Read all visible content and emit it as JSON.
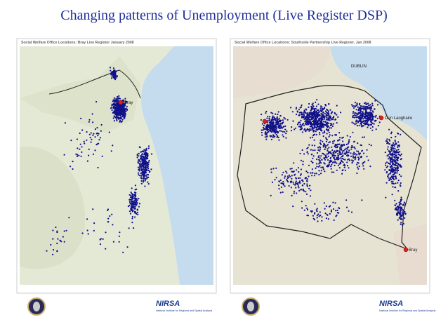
{
  "header": {
    "title": "Changing patterns of Unemployment (Live Register DSP)"
  },
  "maps": [
    {
      "title": "Social Welfare Office Locations: Bray Live Register January 2008",
      "places": [
        "Bray"
      ],
      "logo": {
        "name": "NIRSA",
        "text": "National Institute for Regional and Spatial Analysis"
      }
    },
    {
      "title": "Social Welfare Office Locations: Southside Partnership Live Register, Jan 2008",
      "places": [
        "DUBLIN",
        "Dun Laoghaire",
        "Bray"
      ],
      "logo": {
        "name": "NIRSA",
        "text": "National Institute for Regional and Spatial Analysis"
      }
    }
  ]
}
